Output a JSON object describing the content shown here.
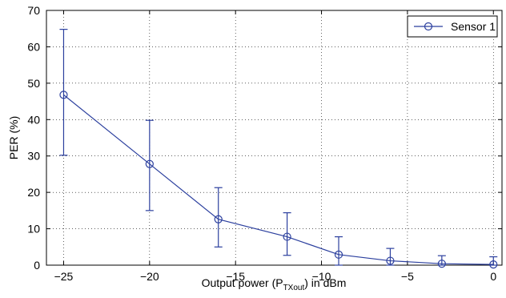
{
  "chart_data": {
    "type": "line",
    "title": "",
    "xlabel_prefix": "Output power (P",
    "xlabel_sub": "TXout",
    "xlabel_suffix": ") in dBm",
    "ylabel": "PER (%)",
    "xlim": [
      -26,
      0.5
    ],
    "ylim": [
      0,
      70
    ],
    "xticks": [
      -25,
      -20,
      -15,
      -10,
      -5,
      0
    ],
    "xtick_labels": [
      "−25",
      "−20",
      "−15",
      "−10",
      "−5",
      "0"
    ],
    "yticks": [
      0,
      10,
      20,
      30,
      40,
      50,
      60,
      70
    ],
    "ytick_labels": [
      "0",
      "10",
      "20",
      "30",
      "40",
      "50",
      "60",
      "70"
    ],
    "grid": true,
    "legend_position": "top-right",
    "series": [
      {
        "name": "Sensor 1",
        "color": "#2b3f9e",
        "marker": "circle",
        "x": [
          -25,
          -20,
          -16,
          -12,
          -9,
          -6,
          -3,
          0
        ],
        "y": [
          46.8,
          27.8,
          12.6,
          7.8,
          2.9,
          1.2,
          0.4,
          0.2
        ],
        "err_low": [
          30.2,
          15.0,
          5.0,
          2.7,
          0.0,
          0.0,
          0.0,
          0.0
        ],
        "err_high": [
          64.8,
          39.8,
          21.3,
          14.4,
          7.8,
          4.6,
          2.6,
          2.3
        ]
      }
    ]
  }
}
